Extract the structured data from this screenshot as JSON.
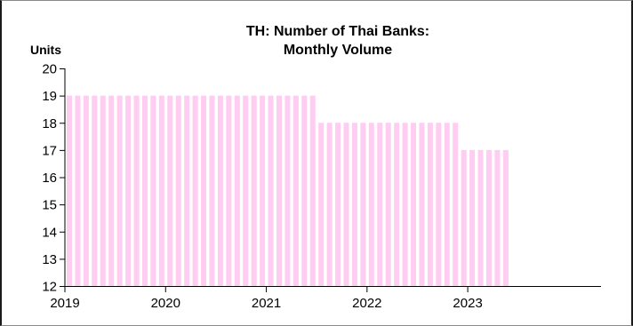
{
  "chart_data": {
    "type": "bar",
    "title_line1": "TH: Number of Thai Banks:",
    "title_line2": "Monthly Volume",
    "ylabel": "Units",
    "xlabel": "",
    "ylim": [
      12,
      20
    ],
    "yticks": [
      "12",
      "13",
      "14",
      "15",
      "16",
      "17",
      "18",
      "19",
      "20"
    ],
    "xticks": [
      "2019",
      "2020",
      "2021",
      "2022",
      "2023"
    ],
    "bar_color": "#ffccf2",
    "grid": false,
    "legend": "none",
    "x": [
      "2019-01",
      "2019-02",
      "2019-03",
      "2019-04",
      "2019-05",
      "2019-06",
      "2019-07",
      "2019-08",
      "2019-09",
      "2019-10",
      "2019-11",
      "2019-12",
      "2020-01",
      "2020-02",
      "2020-03",
      "2020-04",
      "2020-05",
      "2020-06",
      "2020-07",
      "2020-08",
      "2020-09",
      "2020-10",
      "2020-11",
      "2020-12",
      "2021-01",
      "2021-02",
      "2021-03",
      "2021-04",
      "2021-05",
      "2021-06",
      "2021-07",
      "2021-08",
      "2021-09",
      "2021-10",
      "2021-11",
      "2021-12",
      "2022-01",
      "2022-02",
      "2022-03",
      "2022-04",
      "2022-05",
      "2022-06",
      "2022-07",
      "2022-08",
      "2022-09",
      "2022-10",
      "2022-11",
      "2022-12",
      "2023-01",
      "2023-02",
      "2023-03",
      "2023-04",
      "2023-05"
    ],
    "values": [
      19,
      19,
      19,
      19,
      19,
      19,
      19,
      19,
      19,
      19,
      19,
      19,
      19,
      19,
      19,
      19,
      19,
      19,
      19,
      19,
      19,
      19,
      19,
      19,
      19,
      19,
      19,
      19,
      19,
      19,
      18,
      18,
      18,
      18,
      18,
      18,
      18,
      18,
      18,
      18,
      18,
      18,
      18,
      18,
      18,
      18,
      18,
      17,
      17,
      17,
      17,
      17,
      17
    ]
  }
}
